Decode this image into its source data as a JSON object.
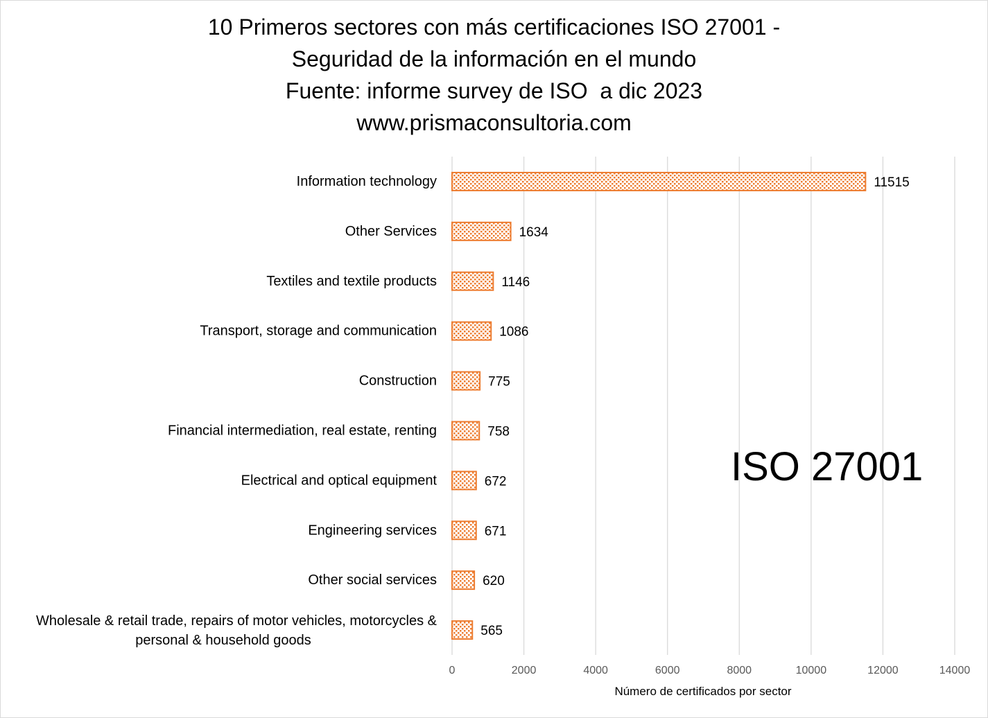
{
  "chart_data": {
    "type": "bar",
    "orientation": "horizontal",
    "title_lines": [
      "10 Primeros sectores con más certificaciones ISO 27001 -",
      "Seguridad de la información en el mundo",
      "Fuente: informe survey de ISO  a dic 2023",
      "www.prismaconsultoria.com"
    ],
    "categories": [
      "Information technology",
      "Other Services",
      "Textiles and textile products",
      "Transport, storage and communication",
      "Construction",
      "Financial intermediation, real estate, renting",
      "Electrical and optical equipment",
      "Engineering services",
      "Other social services",
      [
        "Wholesale & retail trade, repairs of motor vehicles, motorcycles &",
        "personal & household goods"
      ]
    ],
    "values": [
      11515,
      1634,
      1146,
      1086,
      775,
      758,
      672,
      671,
      620,
      565
    ],
    "xlabel": "Número de certificados por sector",
    "ylabel": "",
    "xlim": [
      0,
      14000
    ],
    "xticks": [
      0,
      2000,
      4000,
      6000,
      8000,
      10000,
      12000,
      14000
    ],
    "grid": "vertical",
    "legend": "none",
    "data_labels": true,
    "bar_fill": "pattern-dotted",
    "colors": {
      "bar_stroke": "#ED7D31",
      "bar_pattern": "#ED7D31",
      "grid": "#d9d9d9",
      "frame": "#d9d9d9"
    },
    "annotation": "ISO 27001"
  }
}
